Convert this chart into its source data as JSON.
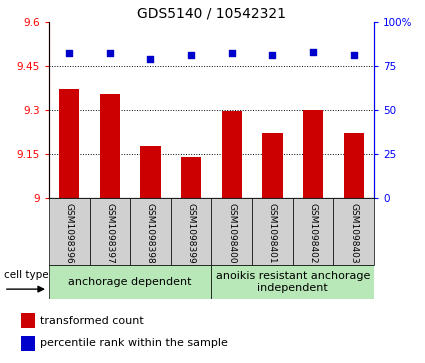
{
  "title": "GDS5140 / 10542321",
  "samples": [
    "GSM1098396",
    "GSM1098397",
    "GSM1098398",
    "GSM1098399",
    "GSM1098400",
    "GSM1098401",
    "GSM1098402",
    "GSM1098403"
  ],
  "bar_values": [
    9.37,
    9.355,
    9.175,
    9.14,
    9.295,
    9.22,
    9.3,
    9.22
  ],
  "percentile_values": [
    82,
    82,
    79,
    81,
    82,
    81,
    83,
    81
  ],
  "ylim_left": [
    9.0,
    9.6
  ],
  "ylim_right": [
    0,
    100
  ],
  "yticks_left": [
    9.0,
    9.15,
    9.3,
    9.45,
    9.6
  ],
  "ytick_labels_left": [
    "9",
    "9.15",
    "9.3",
    "9.45",
    "9.6"
  ],
  "yticks_right": [
    0,
    25,
    50,
    75,
    100
  ],
  "ytick_labels_right": [
    "0",
    "25",
    "50",
    "75",
    "100%"
  ],
  "bar_color": "#cc0000",
  "dot_color": "#0000cc",
  "grid_color": "#000000",
  "group1_label": "anchorage dependent",
  "group2_label": "anoikis resistant anchorage\nindependent",
  "cell_type_label": "cell type",
  "legend_bar_label": "transformed count",
  "legend_dot_label": "percentile rank within the sample",
  "group_bg_color": "#b8e8b8",
  "sample_bg_color": "#d0d0d0",
  "bar_width": 0.5,
  "title_fontsize": 10,
  "tick_fontsize": 7.5,
  "label_fontsize": 8,
  "sample_fontsize": 6.5
}
